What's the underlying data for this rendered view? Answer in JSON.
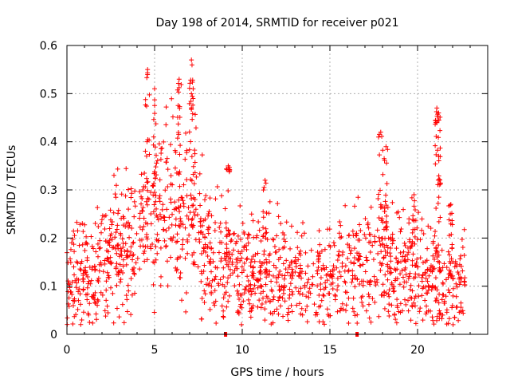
{
  "chart_data": {
    "type": "scatter",
    "title": "Day 198 of 2014, SRMTID for receiver p021",
    "xlabel": "GPS time / hours",
    "ylabel": "SRMTID / TECUs",
    "xlim": [
      0,
      24
    ],
    "ylim": [
      0,
      0.6
    ],
    "xticks": [
      0,
      5,
      10,
      15,
      20
    ],
    "yticks": [
      0,
      0.1,
      0.2,
      0.3,
      0.4,
      0.5,
      0.6
    ],
    "xtick_labels": [
      "0",
      "5",
      "10",
      "15",
      "20"
    ],
    "ytick_labels": [
      "0",
      "0.1",
      "0.2",
      "0.3",
      "0.4",
      "0.5",
      "0.6"
    ],
    "grid": true,
    "marker": "+",
    "color": "#ff0000",
    "x_data_end": 22.7,
    "trend": [
      {
        "x": 0.0,
        "y": 0.12
      },
      {
        "x": 1.0,
        "y": 0.12
      },
      {
        "x": 2.0,
        "y": 0.14
      },
      {
        "x": 3.0,
        "y": 0.17
      },
      {
        "x": 4.0,
        "y": 0.21
      },
      {
        "x": 5.0,
        "y": 0.25
      },
      {
        "x": 6.0,
        "y": 0.27
      },
      {
        "x": 7.0,
        "y": 0.25
      },
      {
        "x": 8.0,
        "y": 0.18
      },
      {
        "x": 9.0,
        "y": 0.15
      },
      {
        "x": 10.0,
        "y": 0.14
      },
      {
        "x": 11.0,
        "y": 0.13
      },
      {
        "x": 12.0,
        "y": 0.12
      },
      {
        "x": 13.0,
        "y": 0.11
      },
      {
        "x": 14.0,
        "y": 0.12
      },
      {
        "x": 15.0,
        "y": 0.12
      },
      {
        "x": 16.0,
        "y": 0.13
      },
      {
        "x": 17.0,
        "y": 0.15
      },
      {
        "x": 18.0,
        "y": 0.15
      },
      {
        "x": 19.0,
        "y": 0.14
      },
      {
        "x": 20.0,
        "y": 0.13
      },
      {
        "x": 21.0,
        "y": 0.1
      },
      {
        "x": 22.0,
        "y": 0.1
      },
      {
        "x": 22.7,
        "y": 0.1
      }
    ],
    "spikes": [
      {
        "x": 4.6,
        "y": 0.55
      },
      {
        "x": 5.0,
        "y": 0.51
      },
      {
        "x": 6.4,
        "y": 0.53
      },
      {
        "x": 7.1,
        "y": 0.57
      },
      {
        "x": 7.2,
        "y": 0.51
      },
      {
        "x": 9.2,
        "y": 0.35
      },
      {
        "x": 11.3,
        "y": 0.32
      },
      {
        "x": 17.9,
        "y": 0.42
      },
      {
        "x": 18.2,
        "y": 0.39
      },
      {
        "x": 19.8,
        "y": 0.29
      },
      {
        "x": 21.1,
        "y": 0.47
      },
      {
        "x": 21.2,
        "y": 0.46
      },
      {
        "x": 21.2,
        "y": 0.37
      },
      {
        "x": 21.9,
        "y": 0.27
      }
    ],
    "gap_markers": [
      {
        "x": 9.05,
        "y": 0.0
      },
      {
        "x": 16.55,
        "y": 0.0
      }
    ]
  }
}
